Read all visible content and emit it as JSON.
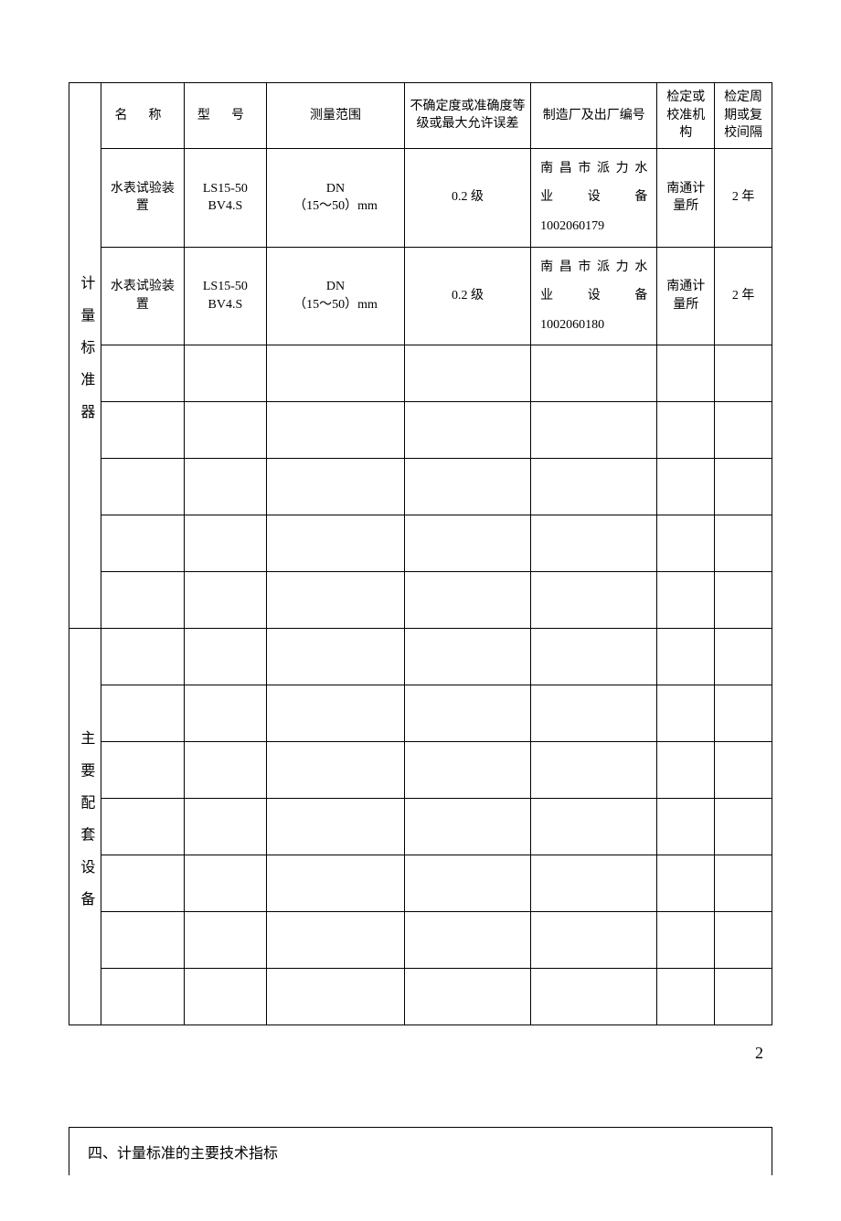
{
  "headers": {
    "name": "名 称",
    "model": "型 号",
    "range": "测量范围",
    "uncertainty": "不确定度或准确度等级或最大允许误差",
    "manufacturer": "制造厂及出厂编号",
    "verify_org": "检定或校准机构",
    "period": "检定周期或复校间隔"
  },
  "section1_label": "计量标准器",
  "section2_label": "主要配套设备",
  "rows": [
    {
      "name": "水表试验装置",
      "model": "LS15-50 BV4.S",
      "range_label": "DN",
      "range_value": "（15～50）mm",
      "uncertainty": "0.2 级",
      "mfr_line1": "南昌市派力水",
      "mfr_line2": "业设备",
      "mfr_serial": "1002060179",
      "verify_org": "南通计量所",
      "period": "2 年"
    },
    {
      "name": "水表试验装置",
      "model": "LS15-50 BV4.S",
      "range_label": "DN",
      "range_value": "（15～50）mm",
      "uncertainty": "0.2 级",
      "mfr_line1": "南昌市派力水",
      "mfr_line2": "业设备",
      "mfr_serial": "1002060180",
      "verify_org": "南通计量所",
      "period": "2 年"
    }
  ],
  "page_number": "2",
  "section4_title": "四、计量标准的主要技术指标",
  "colors": {
    "border": "#000000",
    "background": "#ffffff",
    "text": "#000000"
  }
}
